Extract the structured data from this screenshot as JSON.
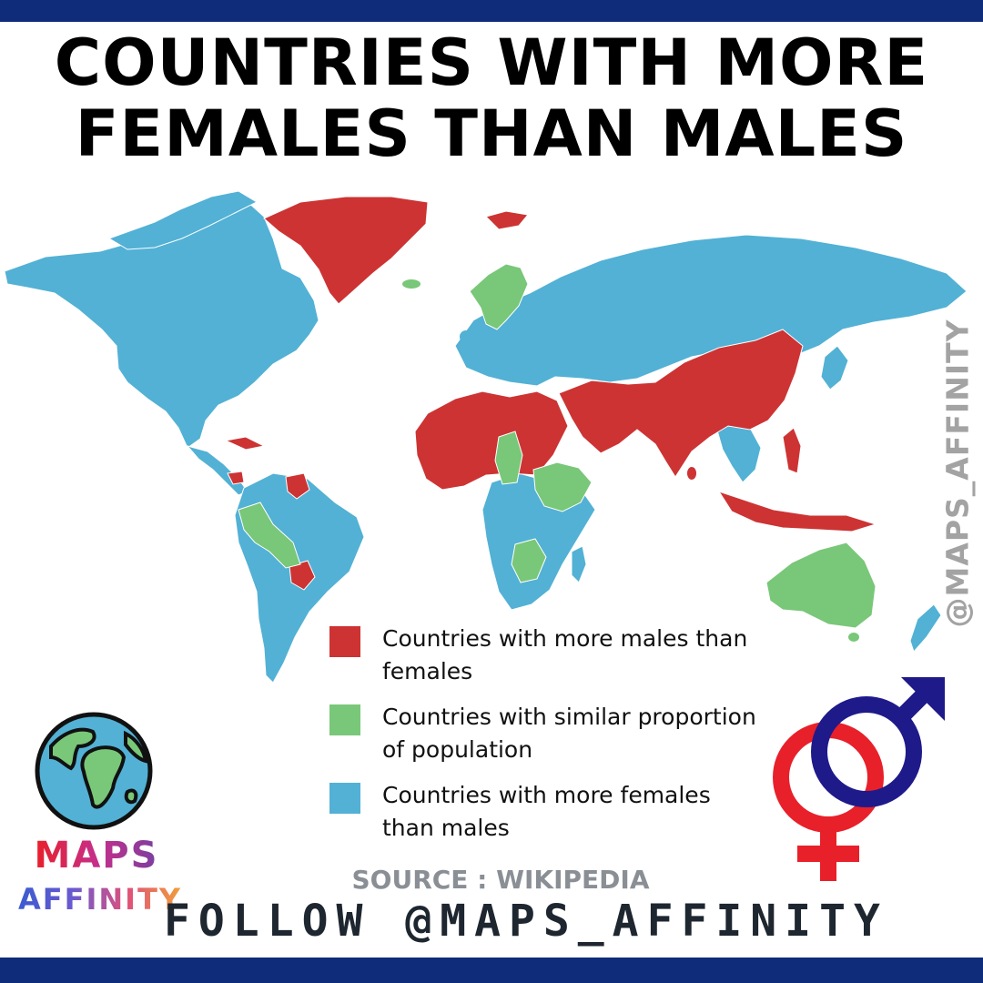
{
  "title": {
    "line1": "COUNTRIES WITH MORE",
    "line2": "FEMALES THAN MALES"
  },
  "legend": [
    {
      "label": "Countries with more males than females",
      "color": "#cd3333",
      "category": "more_males"
    },
    {
      "label": "Countries with similar proportion of population",
      "color": "#79c779",
      "category": "similar"
    },
    {
      "label": "Countries with more females than males",
      "color": "#52b1d5",
      "category": "more_females"
    }
  ],
  "regions": {
    "more_males": [
      "Greenland",
      "Iceland",
      "Northern Africa",
      "Western Africa",
      "Middle East",
      "South Asia",
      "China",
      "Indonesia",
      "Philippines",
      "Papua New Guinea",
      "Paraguay",
      "Guyana",
      "Suriname",
      "Cuba",
      "Costa Rica",
      "Malaysia"
    ],
    "similar": [
      "Sweden",
      "Norway",
      "Finland",
      "Australia",
      "Chad",
      "Ethiopia",
      "Somalia",
      "Zambia",
      "Zimbabwe",
      "Bolivia",
      "Peru",
      "Colombia"
    ],
    "more_females": [
      "North America",
      "Most of South America",
      "Europe",
      "Russia",
      "Central Asia",
      "Southern Africa",
      "Central Africa",
      "Southeast Asia",
      "Japan",
      "Korea",
      "New Zealand"
    ]
  },
  "watermark": "@MAPS_AFFINITY",
  "source": "SOURCE : WIKIPEDIA",
  "follow": "FOLLOW @MAPS_AFFINITY",
  "logo": {
    "word1": "MAPS",
    "word2": "AFFINITY",
    "icon": "globe-icon"
  },
  "symbol_icon": "gender-symbol-icon",
  "colors": {
    "bar": "#0f2c7a",
    "ocean": "#ffffff",
    "more_males": "#cd3333",
    "similar": "#79c779",
    "more_females": "#52b1d5",
    "female_symbol": "#e8202a",
    "male_symbol": "#1e1a8a"
  }
}
